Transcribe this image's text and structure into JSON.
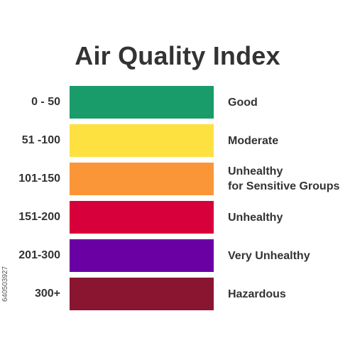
{
  "title": "Air Quality Index",
  "levels": [
    {
      "range": "0 - 50",
      "label_line1": "Good",
      "label_line2": "",
      "color": "#1a9c6a"
    },
    {
      "range": "51 -100",
      "label_line1": "Moderate",
      "label_line2": "",
      "color": "#fde140"
    },
    {
      "range": "101-150",
      "label_line1": "Unhealthy",
      "label_line2": "for Sensitive Groups",
      "color": "#fb9638"
    },
    {
      "range": "151-200",
      "label_line1": "Unhealthy",
      "label_line2": "",
      "color": "#d8003b"
    },
    {
      "range": "201-300",
      "label_line1": "Very Unhealthy",
      "label_line2": "",
      "color": "#6a00a4"
    },
    {
      "range": "300+",
      "label_line1": "Hazardous",
      "label_line2": "",
      "color": "#8a1530"
    }
  ],
  "watermark_id": "640503927"
}
